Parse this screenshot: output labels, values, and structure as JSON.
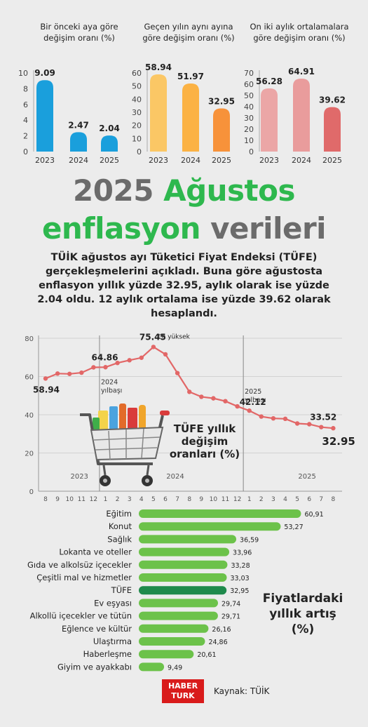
{
  "mini_charts": [
    {
      "title": "Bir önceki aya göre değişim oranı (%)",
      "chart_data": {
        "type": "bar",
        "categories": [
          "2023",
          "2024",
          "2025"
        ],
        "values": [
          9.09,
          2.47,
          2.04
        ],
        "value_labels": [
          "9.09",
          "2.47",
          "2.04"
        ],
        "ylim": [
          0,
          10
        ],
        "yticks": [
          "0",
          "2",
          "4",
          "6",
          "8",
          "10"
        ],
        "ytick_values": [
          0,
          2,
          4,
          6,
          8,
          10
        ],
        "colors": [
          "#1a9fdc",
          "#1a9fdc",
          "#1a9fdc"
        ]
      }
    },
    {
      "title": "Geçen yılın aynı ayına göre değişim oranı (%)",
      "chart_data": {
        "type": "bar",
        "categories": [
          "2023",
          "2024",
          "2025"
        ],
        "values": [
          58.94,
          51.97,
          32.95
        ],
        "value_labels": [
          "58.94",
          "51.97",
          "32.95"
        ],
        "ylim": [
          0,
          60
        ],
        "yticks": [
          "0",
          "10",
          "20",
          "30",
          "40",
          "50",
          "60"
        ],
        "ytick_values": [
          0,
          10,
          20,
          30,
          40,
          50,
          60
        ],
        "colors": [
          "#fbc765",
          "#fbb244",
          "#f7923a"
        ]
      }
    },
    {
      "title": "On iki aylık ortalamalara göre değişim oranı (%)",
      "chart_data": {
        "type": "bar",
        "categories": [
          "2023",
          "2024",
          "2025"
        ],
        "values": [
          56.28,
          64.91,
          39.62
        ],
        "value_labels": [
          "56.28",
          "64.91",
          "39.62"
        ],
        "ylim": [
          0,
          70
        ],
        "yticks": [
          "0",
          "10",
          "20",
          "30",
          "40",
          "50",
          "60",
          "70"
        ],
        "ytick_values": [
          0,
          10,
          20,
          30,
          40,
          50,
          60,
          70
        ],
        "colors": [
          "#eba6a6",
          "#e99c9c",
          "#e06a6a"
        ]
      }
    }
  ],
  "headline": {
    "line1_a": "2025",
    "line1_b": "Ağustos",
    "line2_a": "enflasyon",
    "line2_b": "verileri"
  },
  "intro": "TÜİK ağustos ayı Tüketici Fiyat Endeksi (TÜFE) gerçekleşmelerini açıkladı. Buna göre ağustosta enflasyon yıllık yüzde 32.95, aylık olarak ise yüzde 2.04 oldu. 12 aylık ortalama ise yüzde 39.62 olarak hesaplandı.",
  "line_chart": {
    "title": "TÜFE yıllık değişim oranları (%)",
    "title_lines": [
      "TÜFE yıllık",
      "değişim",
      "oranları (%)"
    ],
    "chart_data": {
      "type": "line",
      "x": [
        "8",
        "9",
        "10",
        "11",
        "12",
        "1",
        "2",
        "3",
        "4",
        "5",
        "6",
        "7",
        "8",
        "9",
        "10",
        "11",
        "12",
        "1",
        "2",
        "3",
        "4",
        "5",
        "6",
        "7",
        "8"
      ],
      "values": [
        58.94,
        61.53,
        61.36,
        61.98,
        64.77,
        64.86,
        67.07,
        68.5,
        69.8,
        75.45,
        71.6,
        61.78,
        51.97,
        49.38,
        48.58,
        47.09,
        44.38,
        42.12,
        39.05,
        38.1,
        37.86,
        35.41,
        35.05,
        33.52,
        32.95
      ],
      "ylim": [
        0,
        80
      ],
      "yticks": [
        "0",
        "20",
        "40",
        "60",
        "80"
      ],
      "ytick_values": [
        0,
        20,
        40,
        60,
        80
      ],
      "year_labels": [
        "2023",
        "2024",
        "2025"
      ],
      "annotations": [
        {
          "text": "58.94",
          "index": 0
        },
        {
          "text": "64.86",
          "index": 5
        },
        {
          "text": "75.45",
          "index": 9
        },
        {
          "text": "En yüksek",
          "index": 9
        },
        {
          "text": "42.12",
          "index": 17
        },
        {
          "text": "33.52",
          "index": 23
        },
        {
          "text": "32.95",
          "index": 24
        }
      ],
      "marker_labels": [
        {
          "text": "2024 yılbaşı",
          "lines": [
            "2024",
            "yılbaşı"
          ],
          "index": 5
        },
        {
          "text": "2025 yılbaşı",
          "lines": [
            "2025",
            "yılbaşı"
          ],
          "index": 17
        }
      ],
      "color": "#e26767"
    }
  },
  "hbar_chart": {
    "title": "Fiyatlardaki yıllık artış (%)",
    "title_lines": [
      "Fiyatlardaki",
      "yıllık artış",
      "(%)"
    ],
    "chart_data": {
      "type": "bar",
      "orientation": "horizontal",
      "categories": [
        "Eğitim",
        "Konut",
        "Sağlık",
        "Lokanta ve oteller",
        "Gıda ve alkolsüz içecekler",
        "Çeşitli mal ve hizmetler",
        "TÜFE",
        "Ev eşyası",
        "Alkollü içecekler ve tütün",
        "Eğlence ve kültür",
        "Ulaştırma",
        "Haberleşme",
        "Giyim ve ayakkabı"
      ],
      "values": [
        60.91,
        53.27,
        36.59,
        33.96,
        33.28,
        33.03,
        32.95,
        29.74,
        29.71,
        26.16,
        24.86,
        20.61,
        9.49
      ],
      "value_labels": [
        "60,91",
        "53,27",
        "36,59",
        "33,96",
        "33,28",
        "33,03",
        "32,95",
        "29,74",
        "29,71",
        "26,16",
        "24,86",
        "20,61",
        "9,49"
      ],
      "colors": {
        "default": "#6cc24a",
        "highlight": "#1f8a4c"
      },
      "highlight": "TÜFE"
    }
  },
  "footer": {
    "logo_line1": "HABER",
    "logo_line2": "TURK",
    "source": "Kaynak: TÜİK"
  }
}
